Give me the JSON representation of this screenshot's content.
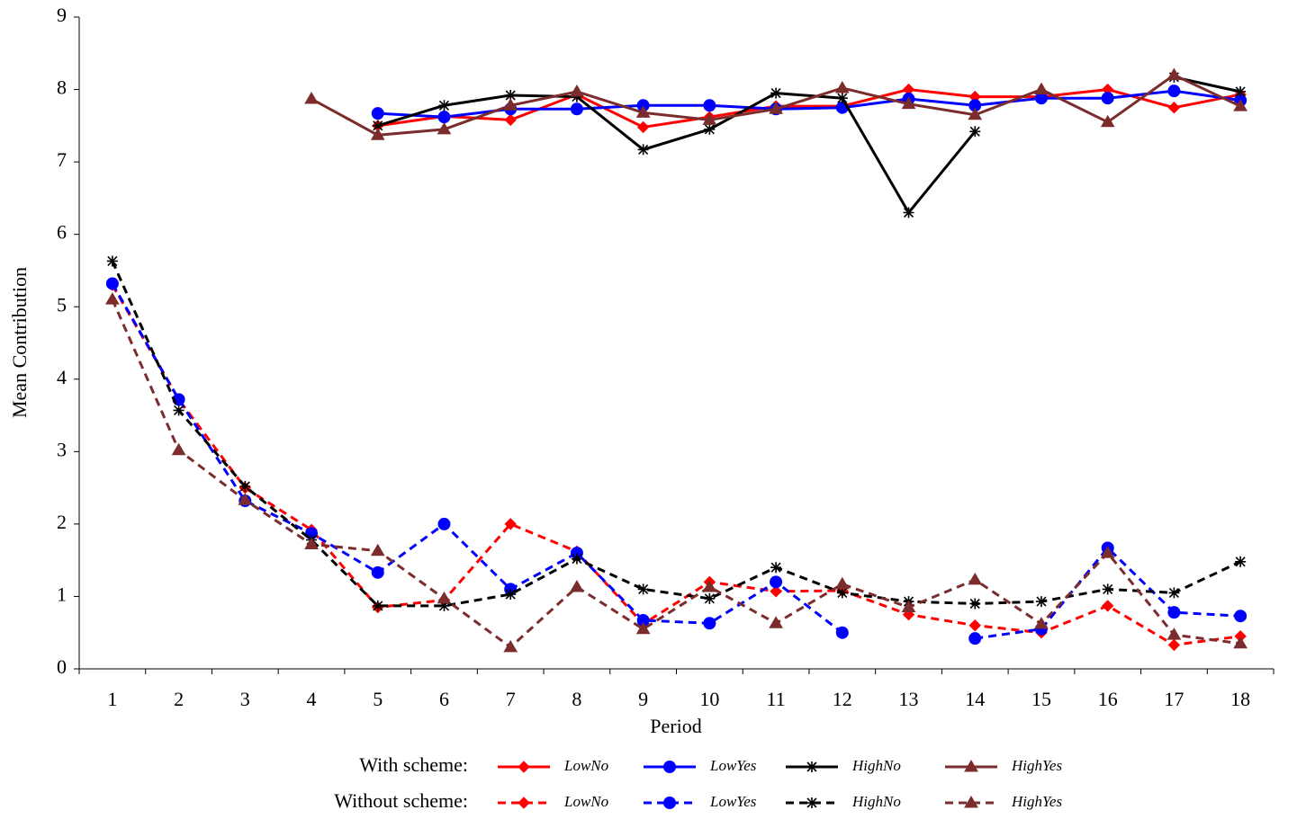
{
  "chart_data": {
    "type": "line",
    "categories": [
      "1",
      "2",
      "3",
      "4",
      "5",
      "6",
      "7",
      "8",
      "9",
      "10",
      "11",
      "12",
      "13",
      "14",
      "15",
      "16",
      "17",
      "18"
    ],
    "x_label": "Period",
    "y_label": "Mean Contribution",
    "ylim": [
      0,
      9
    ],
    "yticks": [
      0,
      1,
      2,
      3,
      4,
      5,
      6,
      7,
      8,
      9
    ],
    "legend_groups": [
      "With scheme:",
      "Without scheme:"
    ],
    "series": [
      {
        "name": "LowNo",
        "color": "#ff0000",
        "marker": "diamond",
        "dashed": false,
        "values": [
          null,
          null,
          null,
          null,
          7.5,
          7.63,
          7.58,
          7.93,
          7.48,
          7.62,
          7.77,
          7.77,
          8.0,
          7.9,
          7.9,
          8.0,
          7.75,
          7.93
        ]
      },
      {
        "name": "LowYes",
        "color": "#0000ff",
        "marker": "circle",
        "dashed": false,
        "values": [
          null,
          null,
          null,
          null,
          7.67,
          7.62,
          7.73,
          7.73,
          7.78,
          7.78,
          7.73,
          7.75,
          7.87,
          7.78,
          7.88,
          7.88,
          7.98,
          7.85
        ]
      },
      {
        "name": "HighNo",
        "color": "#000000",
        "marker": "star",
        "dashed": false,
        "values": [
          null,
          null,
          null,
          null,
          7.5,
          7.78,
          7.92,
          7.9,
          7.17,
          7.45,
          7.95,
          7.88,
          6.3,
          7.42,
          null,
          null,
          8.17,
          7.97
        ]
      },
      {
        "name": "HighYes",
        "color": "#7b2c2c",
        "marker": "triangle",
        "dashed": false,
        "values": [
          null,
          null,
          null,
          7.87,
          7.37,
          7.45,
          7.78,
          7.97,
          7.68,
          7.58,
          7.73,
          8.02,
          7.8,
          7.65,
          8.0,
          7.55,
          8.2,
          7.77
        ]
      },
      {
        "name": "LowNo",
        "color": "#ff0000",
        "marker": "diamond",
        "dashed": true,
        "values": [
          5.3,
          3.72,
          2.5,
          1.92,
          0.85,
          0.95,
          2.0,
          1.62,
          0.62,
          1.2,
          1.07,
          1.08,
          0.75,
          0.6,
          0.5,
          0.87,
          0.33,
          0.45
        ]
      },
      {
        "name": "LowYes",
        "color": "#0000ff",
        "marker": "circle",
        "dashed": true,
        "values": [
          5.32,
          3.72,
          2.32,
          1.87,
          1.33,
          2.0,
          1.1,
          1.6,
          0.67,
          0.63,
          1.2,
          0.5,
          null,
          0.42,
          0.55,
          1.67,
          0.78,
          0.73
        ]
      },
      {
        "name": "HighNo",
        "color": "#000000",
        "marker": "star",
        "dashed": true,
        "values": [
          5.63,
          3.57,
          2.52,
          1.78,
          0.87,
          0.87,
          1.03,
          1.52,
          1.1,
          0.97,
          1.4,
          1.05,
          0.93,
          0.9,
          0.93,
          1.1,
          1.05,
          1.48
        ]
      },
      {
        "name": "HighYes",
        "color": "#7b2c2c",
        "marker": "triangle",
        "dashed": true,
        "values": [
          5.1,
          3.02,
          2.33,
          1.72,
          1.63,
          0.97,
          0.3,
          1.13,
          0.55,
          1.13,
          0.63,
          1.17,
          0.85,
          1.23,
          0.62,
          1.6,
          0.47,
          0.35
        ]
      }
    ]
  }
}
